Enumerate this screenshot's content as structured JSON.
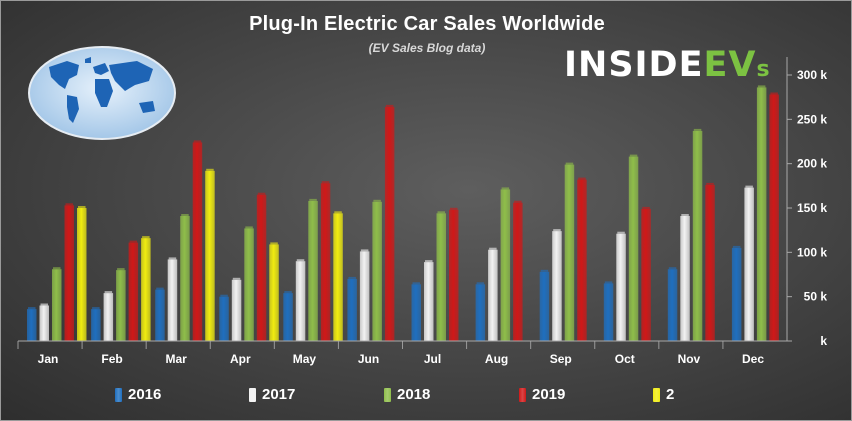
{
  "title": "Plug-In Electric Car Sales Worldwide",
  "subtitle": "(EV Sales Blog data)",
  "logo": {
    "part1": "INSIDE",
    "part2": "EV",
    "part3": "s"
  },
  "colors": {
    "2016": "#1f6fbf",
    "2017": "#f2f2f2",
    "2018": "#8fbe4a",
    "2019": "#d01818",
    "2020": "#f0ec10",
    "axis_text": "#ffffff",
    "background": "#4a4a4a"
  },
  "legend": [
    {
      "name": "2016",
      "color": "#1f6fbf"
    },
    {
      "name": "2017",
      "color": "#f2f2f2"
    },
    {
      "name": "2018",
      "color": "#8fbe4a"
    },
    {
      "name": "2019",
      "color": "#d01818"
    },
    {
      "name": "2",
      "color": "#f0ec10"
    }
  ],
  "chart_data": {
    "type": "bar",
    "title": "Plug-In Electric Car Sales Worldwide",
    "subtitle": "(EV Sales Blog data)",
    "categories": [
      "Jan",
      "Feb",
      "Mar",
      "Apr",
      "May",
      "Jun",
      "Jul",
      "Aug",
      "Sep",
      "Oct",
      "Nov",
      "Dec"
    ],
    "ylim": [
      0,
      300000
    ],
    "yticks": [
      {
        "value": 0,
        "label": "k"
      },
      {
        "value": 50000,
        "label": "50 k"
      },
      {
        "value": 100000,
        "label": "100 k"
      },
      {
        "value": 150000,
        "label": "150 k"
      },
      {
        "value": 200000,
        "label": "200 k"
      },
      {
        "value": 250000,
        "label": "250 k"
      },
      {
        "value": 300000,
        "label": "300 k"
      }
    ],
    "y_axis_position": "right",
    "grid": false,
    "legend_position": "bottom",
    "series": [
      {
        "name": "2016",
        "values": [
          36000,
          36000,
          58000,
          50000,
          54000,
          70000,
          64000,
          64000,
          78000,
          65000,
          81000,
          105000
        ]
      },
      {
        "name": "2017",
        "values": [
          40000,
          54000,
          92000,
          69000,
          90000,
          101000,
          89000,
          103000,
          124000,
          121000,
          141000,
          173000
        ]
      },
      {
        "name": "2018",
        "values": [
          81000,
          80000,
          141000,
          127000,
          158000,
          157000,
          144000,
          171000,
          199000,
          208000,
          237000,
          286000
        ]
      },
      {
        "name": "2019",
        "values": [
          153000,
          111000,
          224000,
          165000,
          178000,
          264000,
          148000,
          156000,
          182000,
          149000,
          176000,
          278000
        ]
      },
      {
        "name": "2",
        "values": [
          150000,
          116000,
          192000,
          109000,
          144000,
          null,
          null,
          null,
          null,
          null,
          null,
          null
        ]
      }
    ]
  }
}
